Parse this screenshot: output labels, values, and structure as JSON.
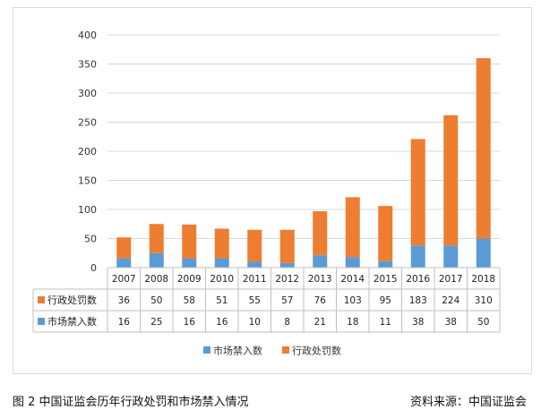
{
  "caption": {
    "title": "图 2  中国证监会历年行政处罚和市场禁入情况",
    "source": "资料来源：中国证监会"
  },
  "colors": {
    "series_market_ban": "#5b9bd5",
    "series_admin_penalty": "#ed7d31",
    "grid": "#d9d9d9",
    "table_border": "#bfbfbf"
  },
  "chart_data": {
    "type": "bar",
    "stacked": true,
    "title": "",
    "xlabel": "",
    "ylabel": "",
    "ylim": [
      0,
      400
    ],
    "yticks": [
      0,
      50,
      100,
      150,
      200,
      250,
      300,
      350,
      400
    ],
    "grid": true,
    "legend_position": "bottom",
    "categories": [
      "2007",
      "2008",
      "2009",
      "2010",
      "2011",
      "2012",
      "2013",
      "2014",
      "2015",
      "2016",
      "2017",
      "2018"
    ],
    "series": [
      {
        "name": "市场禁入数",
        "color": "#5b9bd5",
        "values": [
          16,
          25,
          16,
          16,
          10,
          8,
          21,
          18,
          11,
          38,
          38,
          50
        ]
      },
      {
        "name": "行政处罚数",
        "color": "#ed7d31",
        "values": [
          36,
          50,
          58,
          51,
          55,
          57,
          76,
          103,
          95,
          183,
          224,
          310
        ]
      }
    ],
    "table_rows": [
      {
        "label": "行政处罚数",
        "series_index": 1
      },
      {
        "label": "市场禁入数",
        "series_index": 0
      }
    ]
  }
}
